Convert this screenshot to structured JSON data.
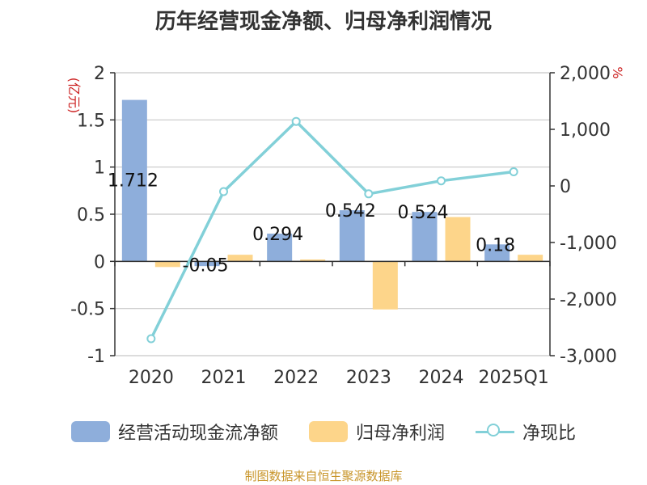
{
  "chart_data": {
    "type": "bar+line",
    "title": "历年经营现金净额、归母净利润情况",
    "categories": [
      "2020",
      "2021",
      "2022",
      "2023",
      "2024",
      "2025Q1"
    ],
    "series": [
      {
        "name": "经营活动现金流净额",
        "type": "bar",
        "axis": "left",
        "color": "#8eaedb",
        "values": [
          1.712,
          -0.05,
          0.294,
          0.542,
          0.524,
          0.18
        ],
        "labels": [
          "1.712",
          "-0.05",
          "0.294",
          "0.542",
          "0.524",
          "0.18"
        ]
      },
      {
        "name": "归母净利润",
        "type": "bar",
        "axis": "left",
        "color": "#fdd58a",
        "values": [
          -0.06,
          0.07,
          0.02,
          -0.51,
          0.47,
          0.07
        ]
      },
      {
        "name": "净现比",
        "type": "line",
        "axis": "right",
        "color": "#82d0d8",
        "values": [
          -2700,
          -100,
          1140,
          -140,
          90,
          250
        ]
      }
    ],
    "left_axis": {
      "label": "(亿元)",
      "min": -1,
      "max": 2,
      "ticks": [
        -1,
        -0.5,
        0,
        0.5,
        1,
        1.5,
        2
      ],
      "tick_labels": [
        "-1",
        "-0.5",
        "0",
        "0.5",
        "1",
        "1.5",
        "2"
      ]
    },
    "right_axis": {
      "label": "%",
      "min": -3000,
      "max": 2000,
      "ticks": [
        -3000,
        -2000,
        -1000,
        0,
        1000,
        2000
      ],
      "tick_labels": [
        "-3,000",
        "-2,000",
        "-1,000",
        "0",
        "1,000",
        "2,000"
      ]
    },
    "grid": true,
    "legend_position": "bottom"
  },
  "source": "制图数据来自恒生聚源数据库"
}
